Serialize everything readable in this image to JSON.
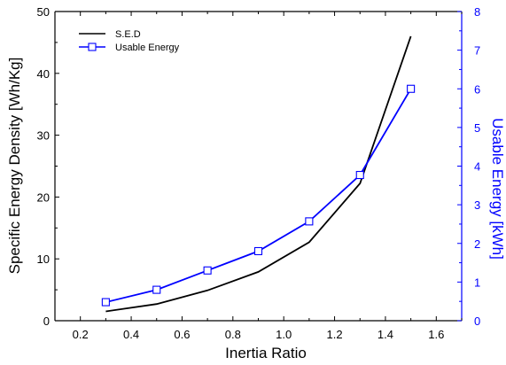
{
  "chart_data": {
    "type": "line",
    "title": "",
    "xlabel": "Inertia Ratio",
    "ylabel": "Specific Energy Density  [Wh/Kg]",
    "y2label": "Usable Energy [kWh]",
    "xlim": [
      0.1,
      1.7
    ],
    "ylim": [
      0,
      50
    ],
    "y2lim": [
      0,
      8
    ],
    "xticks": [
      "0.2",
      "0.4",
      "0.6",
      "0.8",
      "1.0",
      "1.2",
      "1.4",
      "1.6"
    ],
    "yticks": [
      "0",
      "10",
      "20",
      "30",
      "40",
      "50"
    ],
    "y2ticks": [
      "0",
      "1",
      "2",
      "3",
      "4",
      "5",
      "6",
      "7",
      "8"
    ],
    "grid": false,
    "legend_position": "top-left",
    "series": [
      {
        "name": "S.E.D",
        "axis": "left",
        "color": "#000000",
        "marker": "none",
        "x": [
          0.3,
          0.5,
          0.7,
          0.9,
          1.1,
          1.3,
          1.5
        ],
        "y": [
          1.5,
          2.7,
          4.9,
          7.9,
          12.7,
          22.2,
          46.0
        ]
      },
      {
        "name": "Usable Energy",
        "axis": "right",
        "color": "#0000ff",
        "marker": "open-square",
        "x": [
          0.3,
          0.5,
          0.7,
          0.9,
          1.1,
          1.3,
          1.5
        ],
        "y": [
          0.48,
          0.8,
          1.3,
          1.8,
          2.57,
          3.77,
          6.0
        ]
      }
    ]
  }
}
